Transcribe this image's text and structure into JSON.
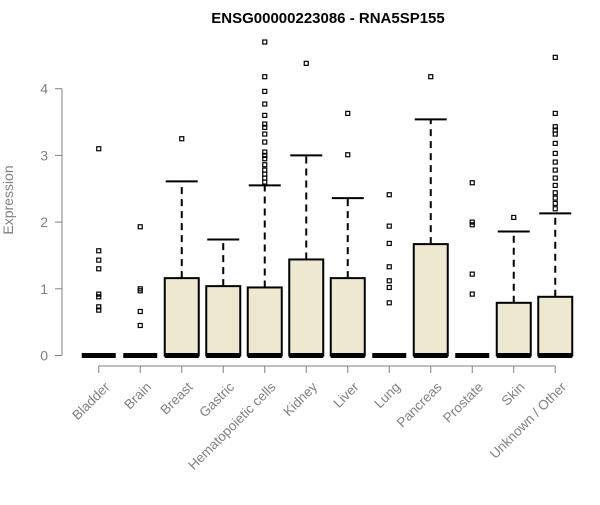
{
  "chart_data": {
    "type": "boxplot",
    "title": "ENSG00000223086 - RNA5SP155",
    "xlabel": "",
    "ylabel": "Expression",
    "ylim": [
      0,
      4.7
    ],
    "yticks": [
      0,
      1,
      2,
      3,
      4
    ],
    "grid": false,
    "legend": "none",
    "box_fill": "#EEE8D0",
    "box_stroke": "#000000",
    "categories": [
      "Bladder",
      "Brain",
      "Breast",
      "Gastric",
      "Hematopoietic cells",
      "Kidney",
      "Liver",
      "Lung",
      "Pancreas",
      "Prostate",
      "Skin",
      "Unknown / Other"
    ],
    "series": [
      {
        "category": "Bladder",
        "min": 0,
        "q1": 0,
        "median": 0,
        "q3": 0,
        "max": 0,
        "outliers": [
          3.1,
          1.57,
          1.43,
          1.3,
          0.92,
          0.88,
          0.73,
          0.68
        ]
      },
      {
        "category": "Brain",
        "min": 0,
        "q1": 0,
        "median": 0,
        "q3": 0,
        "max": 0,
        "outliers": [
          1.93,
          1.0,
          0.97,
          0.66,
          0.45
        ]
      },
      {
        "category": "Breast",
        "min": 0,
        "q1": 0,
        "median": 0,
        "q3": 1.16,
        "max": 2.61,
        "outliers": [
          3.25
        ]
      },
      {
        "category": "Gastric",
        "min": 0,
        "q1": 0,
        "median": 0,
        "q3": 1.04,
        "max": 1.74,
        "outliers": []
      },
      {
        "category": "Hematopoietic cells",
        "min": 0,
        "q1": 0,
        "median": 0,
        "q3": 1.02,
        "max": 2.55,
        "outliers": [
          4.7,
          4.18,
          3.96,
          3.77,
          3.6,
          3.47,
          3.42,
          3.32,
          3.2,
          3.05,
          3.0,
          2.95,
          2.86,
          2.78,
          2.72,
          2.66,
          2.6
        ]
      },
      {
        "category": "Kidney",
        "min": 0,
        "q1": 0,
        "median": 0,
        "q3": 1.44,
        "max": 3.0,
        "outliers": [
          4.38
        ]
      },
      {
        "category": "Liver",
        "min": 0,
        "q1": 0,
        "median": 0,
        "q3": 1.16,
        "max": 2.36,
        "outliers": [
          3.63,
          3.01
        ]
      },
      {
        "category": "Lung",
        "min": 0,
        "q1": 0,
        "median": 0,
        "q3": 0,
        "max": 0,
        "outliers": [
          2.41,
          1.94,
          1.68,
          1.33,
          1.12,
          1.02,
          0.79
        ]
      },
      {
        "category": "Pancreas",
        "min": 0,
        "q1": 0,
        "median": 0,
        "q3": 1.67,
        "max": 3.54,
        "outliers": [
          4.18
        ]
      },
      {
        "category": "Prostate",
        "min": 0,
        "q1": 0,
        "median": 0,
        "q3": 0,
        "max": 0,
        "outliers": [
          2.59,
          2.0,
          1.96,
          1.22,
          0.92
        ]
      },
      {
        "category": "Skin",
        "min": 0,
        "q1": 0,
        "median": 0,
        "q3": 0.79,
        "max": 1.86,
        "outliers": [
          2.07
        ]
      },
      {
        "category": "Unknown / Other",
        "min": 0,
        "q1": 0,
        "median": 0,
        "q3": 0.88,
        "max": 2.13,
        "outliers": [
          4.47,
          3.63,
          3.43,
          3.38,
          3.32,
          3.18,
          3.03,
          2.9,
          2.78,
          2.66,
          2.55,
          2.44,
          2.36,
          2.28,
          2.2
        ]
      }
    ]
  }
}
